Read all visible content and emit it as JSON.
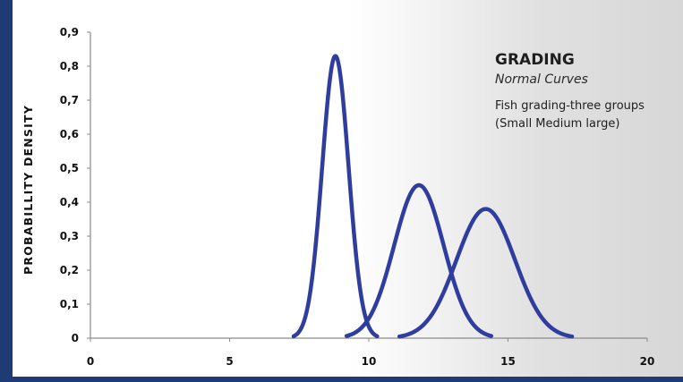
{
  "chart_data": {
    "type": "line",
    "title": "GRADING",
    "subtitle": "Normal Curves",
    "description_lines": [
      "Fish grading-three groups",
      "(Small Medium large)"
    ],
    "ylabel": "PROBABILLITY  DENSITY",
    "xlabel": "",
    "xlim": [
      0,
      20
    ],
    "ylim": [
      0,
      0.9
    ],
    "x_ticks": [
      "0",
      "5",
      "10",
      "15",
      "20"
    ],
    "x_tick_values": [
      0,
      5,
      10,
      15,
      20
    ],
    "y_ticks": [
      "0",
      "0,1",
      "0,2",
      "0,3",
      "0,4",
      "0,5",
      "0,6",
      "0,7",
      "0,8",
      "0,9"
    ],
    "y_tick_values": [
      0,
      0.1,
      0.2,
      0.3,
      0.4,
      0.5,
      0.6,
      0.7,
      0.8,
      0.9
    ],
    "grid": false,
    "line_color": "#2e3d9e",
    "series": [
      {
        "mean": 8.8,
        "sd": 0.475,
        "x_range": [
          7.3,
          10.3
        ],
        "peak": 0.83
      },
      {
        "mean": 11.8,
        "sd": 0.89,
        "x_range": [
          9.2,
          14.4
        ],
        "peak": 0.45
      },
      {
        "mean": 14.2,
        "sd": 1.05,
        "x_range": [
          11.1,
          17.3
        ],
        "peak": 0.38
      }
    ]
  }
}
